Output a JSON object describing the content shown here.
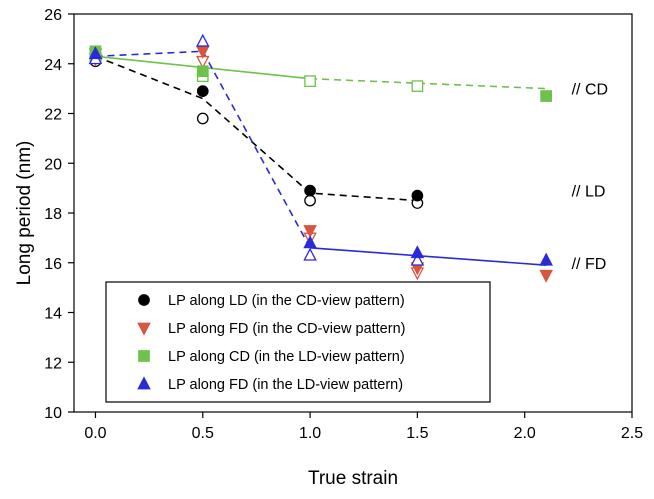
{
  "chart_data": {
    "type": "scatter",
    "title": "",
    "xlabel": "True strain",
    "ylabel": "Long period (nm)",
    "xlim": [
      -0.1,
      2.5
    ],
    "ylim": [
      10,
      26
    ],
    "xticks": [
      "0.0",
      "0.5",
      "1.0",
      "1.5",
      "2.0",
      "2.5"
    ],
    "yticks": [
      "10",
      "12",
      "14",
      "16",
      "18",
      "20",
      "22",
      "24",
      "26"
    ],
    "grid": false,
    "legend_position": "bottom-left",
    "series": [
      {
        "name": "LP along LD (in the CD-view pattern)",
        "color": "#000000",
        "marker": "circle",
        "filled": [
          [
            0.0,
            24.3
          ],
          [
            0.5,
            22.9
          ],
          [
            1.0,
            18.9
          ],
          [
            1.5,
            18.7
          ]
        ],
        "open": [
          [
            0.0,
            24.1
          ],
          [
            0.5,
            21.8
          ],
          [
            1.0,
            18.5
          ],
          [
            1.5,
            18.4
          ]
        ],
        "fit": [
          [
            0.0,
            24.3
          ],
          [
            0.5,
            22.6
          ],
          [
            1.0,
            18.8
          ],
          [
            1.5,
            18.5
          ]
        ],
        "fit_style": "dashed"
      },
      {
        "name": "LP along FD (in the CD-view pattern)",
        "color": "#d9553e",
        "marker": "triangle-down",
        "filled": [
          [
            0.0,
            24.4
          ],
          [
            0.5,
            24.5
          ],
          [
            1.0,
            17.3
          ],
          [
            1.5,
            15.8
          ],
          [
            2.1,
            15.5
          ]
        ],
        "open": [
          [
            0.0,
            24.2
          ],
          [
            0.5,
            24.1
          ],
          [
            1.0,
            17.0
          ],
          [
            1.5,
            15.6
          ]
        ],
        "fit": [],
        "fit_style": "none"
      },
      {
        "name": "LP along CD (in the LD-view pattern)",
        "color": "#6cc24a",
        "marker": "square",
        "filled": [
          [
            0.0,
            24.5
          ],
          [
            0.5,
            23.7
          ],
          [
            2.1,
            22.7
          ]
        ],
        "open": [
          [
            0.0,
            24.3
          ],
          [
            0.5,
            23.5
          ],
          [
            1.0,
            23.3
          ],
          [
            1.5,
            23.1
          ]
        ],
        "fit_solid": [
          [
            0.0,
            24.3
          ],
          [
            1.0,
            23.4
          ]
        ],
        "fit_dashed": [
          [
            1.0,
            23.4
          ],
          [
            2.1,
            23.0
          ]
        ]
      },
      {
        "name": "LP along FD  (in the LD-view pattern)",
        "color": "#2a2ad6",
        "marker": "triangle-up",
        "filled": [
          [
            0.0,
            24.4
          ],
          [
            1.0,
            16.8
          ],
          [
            1.5,
            16.4
          ],
          [
            2.1,
            16.1
          ]
        ],
        "open": [
          [
            0.0,
            24.2
          ],
          [
            0.5,
            24.9
          ],
          [
            1.0,
            16.3
          ],
          [
            1.5,
            16.1
          ]
        ],
        "fit_dashed": [
          [
            0.0,
            24.3
          ],
          [
            0.5,
            24.5
          ],
          [
            1.0,
            16.6
          ]
        ],
        "fit_solid": [
          [
            1.0,
            16.6
          ],
          [
            2.1,
            15.9
          ]
        ]
      }
    ],
    "annotations": [
      {
        "text": "// CD",
        "x": 2.2,
        "y": 23.0
      },
      {
        "text": "// LD",
        "x": 2.2,
        "y": 18.9
      },
      {
        "text": "// FD",
        "x": 2.2,
        "y": 16.0
      }
    ]
  }
}
